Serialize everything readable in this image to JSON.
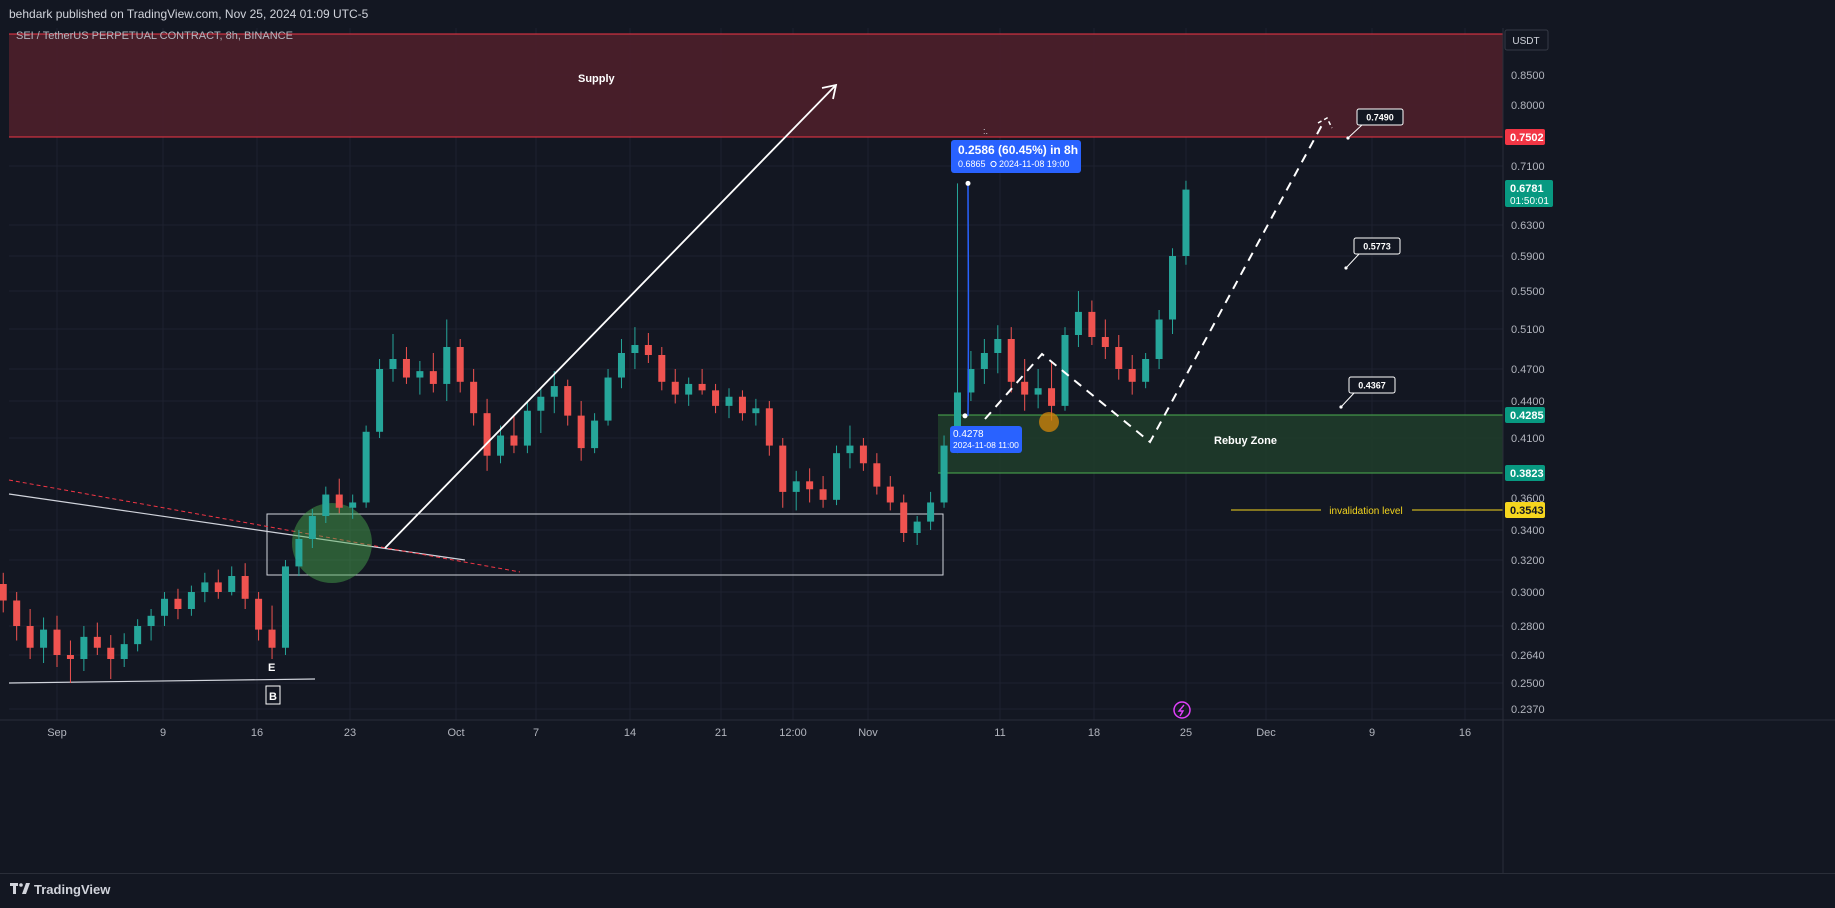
{
  "header": {
    "published": "behdark published on TradingView.com, Nov 25, 2024 01:09 UTC-5"
  },
  "footer": {
    "brand": "TradingView"
  },
  "chart_data": {
    "type": "candlestick",
    "symbol_line": "SEI / TetherUS PERPETUAL CONTRACT, 8h, BINANCE",
    "currency": "USDT",
    "y_ticks": [
      "0.8500",
      "0.8000",
      "0.7100",
      "0.6300",
      "0.5900",
      "0.5500",
      "0.5100",
      "0.4700",
      "0.4400",
      "0.4100",
      "0.3600",
      "0.3400",
      "0.3200",
      "0.3000",
      "0.2800",
      "0.2640",
      "0.2500",
      "0.2370"
    ],
    "x_ticks": [
      "Sep",
      "9",
      "16",
      "23",
      "Oct",
      "7",
      "14",
      "21",
      "12:00",
      "Nov",
      "11",
      "18",
      "25",
      "Dec",
      "9",
      "16"
    ],
    "price_labels": {
      "supply_bottom": "0.7502",
      "last_price": "0.6781",
      "countdown": "01:50:01",
      "rebuy_top": "0.4285",
      "rebuy_bottom": "0.3823",
      "invalidation": "0.3543"
    },
    "zones": {
      "supply": {
        "label": "Supply",
        "from": 0.7502,
        "to": 0.93
      },
      "rebuy": {
        "label": "Rebuy Zone",
        "from": 0.3823,
        "to": 0.4285
      }
    },
    "invalidation_label": "invalidation level",
    "measure": {
      "headline": "0.2586 (60.45%) in 8h",
      "sub_price": "0.6865",
      "sub_time": "2024-11-08  19:00",
      "start_price": "0.4278",
      "start_label": "0.4278",
      "start_time": "2024-11-08 11:00"
    },
    "targets": [
      "0.7490",
      "0.5773",
      "0.4367"
    ],
    "wave_labels": [
      "E",
      "B"
    ],
    "candles_daily": [
      [
        "2024-08-28",
        0.318,
        0.326,
        0.3,
        0.305
      ],
      [
        "2024-08-29",
        0.305,
        0.312,
        0.288,
        0.295
      ],
      [
        "2024-08-30",
        0.295,
        0.3,
        0.272,
        0.28
      ],
      [
        "2024-08-31",
        0.28,
        0.29,
        0.262,
        0.268
      ],
      [
        "2024-09-01",
        0.268,
        0.285,
        0.26,
        0.278
      ],
      [
        "2024-09-02",
        0.278,
        0.286,
        0.258,
        0.264
      ],
      [
        "2024-09-03",
        0.264,
        0.272,
        0.25,
        0.262
      ],
      [
        "2024-09-04",
        0.262,
        0.28,
        0.256,
        0.274
      ],
      [
        "2024-09-05",
        0.274,
        0.282,
        0.264,
        0.268
      ],
      [
        "2024-09-06",
        0.268,
        0.275,
        0.252,
        0.262
      ],
      [
        "2024-09-07",
        0.262,
        0.276,
        0.258,
        0.27
      ],
      [
        "2024-09-08",
        0.27,
        0.284,
        0.266,
        0.28
      ],
      [
        "2024-09-09",
        0.28,
        0.29,
        0.272,
        0.286
      ],
      [
        "2024-09-10",
        0.286,
        0.3,
        0.28,
        0.296
      ],
      [
        "2024-09-11",
        0.296,
        0.302,
        0.284,
        0.29
      ],
      [
        "2024-09-12",
        0.29,
        0.304,
        0.286,
        0.3
      ],
      [
        "2024-09-13",
        0.3,
        0.312,
        0.294,
        0.306
      ],
      [
        "2024-09-14",
        0.306,
        0.314,
        0.296,
        0.3
      ],
      [
        "2024-09-15",
        0.3,
        0.316,
        0.298,
        0.31
      ],
      [
        "2024-09-16",
        0.31,
        0.318,
        0.29,
        0.296
      ],
      [
        "2024-09-17",
        0.296,
        0.3,
        0.272,
        0.278
      ],
      [
        "2024-09-18",
        0.278,
        0.292,
        0.262,
        0.268
      ],
      [
        "2024-09-19",
        0.268,
        0.32,
        0.264,
        0.316
      ],
      [
        "2024-09-20",
        0.316,
        0.34,
        0.31,
        0.334
      ],
      [
        "2024-09-21",
        0.334,
        0.355,
        0.328,
        0.35
      ],
      [
        "2024-09-22",
        0.35,
        0.372,
        0.345,
        0.366
      ],
      [
        "2024-09-23",
        0.366,
        0.378,
        0.352,
        0.356
      ],
      [
        "2024-09-24",
        0.356,
        0.366,
        0.348,
        0.36
      ],
      [
        "2024-09-25",
        0.36,
        0.42,
        0.356,
        0.415
      ],
      [
        "2024-09-26",
        0.415,
        0.48,
        0.41,
        0.47
      ],
      [
        "2024-09-27",
        0.47,
        0.505,
        0.458,
        0.48
      ],
      [
        "2024-09-28",
        0.48,
        0.492,
        0.456,
        0.462
      ],
      [
        "2024-09-29",
        0.462,
        0.478,
        0.446,
        0.468
      ],
      [
        "2024-09-30",
        0.468,
        0.486,
        0.448,
        0.456
      ],
      [
        "2024-10-01",
        0.456,
        0.52,
        0.44,
        0.492
      ],
      [
        "2024-10-02",
        0.492,
        0.5,
        0.448,
        0.458
      ],
      [
        "2024-10-03",
        0.458,
        0.47,
        0.42,
        0.43
      ],
      [
        "2024-10-04",
        0.43,
        0.442,
        0.384,
        0.396
      ],
      [
        "2024-10-05",
        0.396,
        0.42,
        0.39,
        0.412
      ],
      [
        "2024-10-06",
        0.412,
        0.428,
        0.398,
        0.404
      ],
      [
        "2024-10-07",
        0.404,
        0.44,
        0.398,
        0.432
      ],
      [
        "2024-10-08",
        0.432,
        0.452,
        0.414,
        0.444
      ],
      [
        "2024-10-09",
        0.444,
        0.468,
        0.43,
        0.454
      ],
      [
        "2024-10-10",
        0.454,
        0.46,
        0.42,
        0.428
      ],
      [
        "2024-10-11",
        0.428,
        0.44,
        0.392,
        0.402
      ],
      [
        "2024-10-12",
        0.402,
        0.43,
        0.398,
        0.424
      ],
      [
        "2024-10-13",
        0.424,
        0.47,
        0.42,
        0.462
      ],
      [
        "2024-10-14",
        0.462,
        0.5,
        0.452,
        0.486
      ],
      [
        "2024-10-15",
        0.486,
        0.512,
        0.47,
        0.494
      ],
      [
        "2024-10-16",
        0.494,
        0.506,
        0.476,
        0.484
      ],
      [
        "2024-10-17",
        0.484,
        0.492,
        0.45,
        0.458
      ],
      [
        "2024-10-18",
        0.458,
        0.47,
        0.438,
        0.446
      ],
      [
        "2024-10-19",
        0.446,
        0.462,
        0.436,
        0.456
      ],
      [
        "2024-10-20",
        0.456,
        0.47,
        0.446,
        0.45
      ],
      [
        "2024-10-21",
        0.45,
        0.456,
        0.43,
        0.436
      ],
      [
        "2024-10-22",
        0.436,
        0.452,
        0.426,
        0.444
      ],
      [
        "2024-10-23",
        0.444,
        0.45,
        0.424,
        0.43
      ],
      [
        "2024-10-24",
        0.43,
        0.442,
        0.42,
        0.434
      ],
      [
        "2024-10-25",
        0.434,
        0.44,
        0.396,
        0.404
      ],
      [
        "2024-10-26",
        0.404,
        0.41,
        0.356,
        0.368
      ],
      [
        "2024-10-27",
        0.368,
        0.384,
        0.354,
        0.376
      ],
      [
        "2024-10-28",
        0.376,
        0.386,
        0.36,
        0.37
      ],
      [
        "2024-10-29",
        0.37,
        0.38,
        0.356,
        0.362
      ],
      [
        "2024-10-30",
        0.362,
        0.404,
        0.358,
        0.398
      ],
      [
        "2024-10-31",
        0.398,
        0.42,
        0.386,
        0.404
      ],
      [
        "2024-11-01",
        0.404,
        0.41,
        0.384,
        0.39
      ],
      [
        "2024-11-02",
        0.39,
        0.398,
        0.366,
        0.372
      ],
      [
        "2024-11-03",
        0.372,
        0.38,
        0.354,
        0.36
      ],
      [
        "2024-11-04",
        0.36,
        0.366,
        0.332,
        0.338
      ],
      [
        "2024-11-05",
        0.338,
        0.35,
        0.33,
        0.346
      ],
      [
        "2024-11-06",
        0.346,
        0.368,
        0.34,
        0.36
      ],
      [
        "2024-11-07",
        0.36,
        0.412,
        0.356,
        0.404
      ],
      [
        "2024-11-08",
        0.404,
        0.6865,
        0.398,
        0.448
      ],
      [
        "2024-11-09",
        0.448,
        0.488,
        0.44,
        0.47
      ],
      [
        "2024-11-10",
        0.47,
        0.5,
        0.456,
        0.486
      ],
      [
        "2024-11-11",
        0.486,
        0.514,
        0.466,
        0.5
      ],
      [
        "2024-11-12",
        0.5,
        0.512,
        0.448,
        0.458
      ],
      [
        "2024-11-13",
        0.458,
        0.48,
        0.432,
        0.446
      ],
      [
        "2024-11-14",
        0.446,
        0.47,
        0.434,
        0.452
      ],
      [
        "2024-11-15",
        0.452,
        0.478,
        0.424,
        0.436
      ],
      [
        "2024-11-16",
        0.436,
        0.512,
        0.432,
        0.504
      ],
      [
        "2024-11-17",
        0.504,
        0.55,
        0.492,
        0.528
      ],
      [
        "2024-11-18",
        0.528,
        0.54,
        0.494,
        0.502
      ],
      [
        "2024-11-19",
        0.502,
        0.52,
        0.48,
        0.492
      ],
      [
        "2024-11-20",
        0.492,
        0.504,
        0.46,
        0.47
      ],
      [
        "2024-11-21",
        0.47,
        0.484,
        0.446,
        0.458
      ],
      [
        "2024-11-22",
        0.458,
        0.486,
        0.452,
        0.48
      ],
      [
        "2024-11-23",
        0.48,
        0.53,
        0.47,
        0.52
      ],
      [
        "2024-11-24",
        0.52,
        0.6,
        0.505,
        0.59
      ],
      [
        "2024-11-25",
        0.59,
        0.69,
        0.58,
        0.678
      ]
    ]
  }
}
